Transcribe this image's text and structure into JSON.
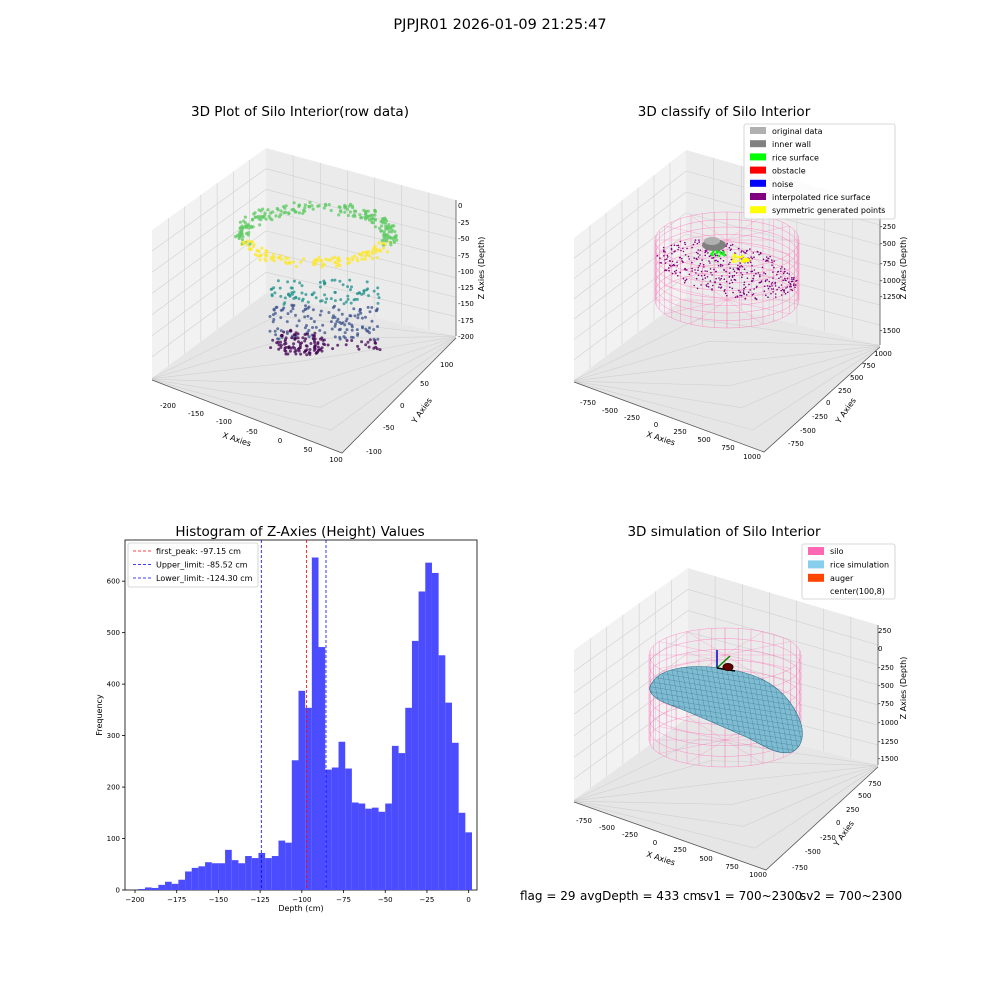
{
  "figure": {
    "suptitle": "PJPJR01 2026-01-09 21:25:47",
    "status_line": {
      "flag": "flag = 29",
      "avgDepth": "avgDepth = 433 cm",
      "sv1": "sv1 = 700~2300",
      "sv2": "sv2 = 700~2300"
    }
  },
  "chart_data": [
    {
      "type": "scatter",
      "projection": "3d",
      "title": "3D Plot of Silo Interior(row data)",
      "xlabel": "X Axies",
      "ylabel": "Y Axies",
      "zlabel": "Z Axies (Depth)",
      "x_ticks": [
        "-200",
        "-150",
        "-100",
        "-50",
        "0",
        "50",
        "100"
      ],
      "y_ticks": [
        "-100",
        "-50",
        "0",
        "50",
        "100"
      ],
      "z_ticks": [
        "-200",
        "-175",
        "-150",
        "-125",
        "-100",
        "-75",
        "-50",
        "-25",
        "0"
      ],
      "xlim": [
        -220,
        100
      ],
      "ylim": [
        -110,
        110
      ],
      "zlim": [
        -210,
        0
      ],
      "colormap": "viridis",
      "colormap_colors": [
        "#440154",
        "#3b528b",
        "#21918c",
        "#5ec962",
        "#fde725"
      ]
    },
    {
      "type": "scatter",
      "projection": "3d",
      "title": "3D classify of Silo Interior",
      "xlabel": "X Axies",
      "ylabel": "Y Axies",
      "zlabel": "Z Axies (Depth)",
      "x_ticks": [
        "-750",
        "-500",
        "-250",
        "0",
        "250",
        "500",
        "750",
        "1000"
      ],
      "y_ticks": [
        "-750",
        "-500",
        "-250",
        "0",
        "250",
        "500",
        "750",
        "1000"
      ],
      "z_ticks": [
        "-1500",
        "-1250",
        "-1000",
        "-750",
        "-500",
        "-250",
        "0"
      ],
      "legend": [
        {
          "label": "original data",
          "color": "#b0b0b0"
        },
        {
          "label": "inner wall",
          "color": "#808080"
        },
        {
          "label": "rice surface",
          "color": "#00ff00"
        },
        {
          "label": "obstacle",
          "color": "#ff0000"
        },
        {
          "label": "noise",
          "color": "#0000ff"
        },
        {
          "label": "interpolated rice surface",
          "color": "#800080"
        },
        {
          "label": "symmetric generated points",
          "color": "#ffff00"
        }
      ],
      "legend_loc": "upper right"
    },
    {
      "type": "bar",
      "title": "Histogram of Z-Axies (Height) Values",
      "xlabel": "Depth (cm)",
      "ylabel": "Frequency",
      "bar_color": "#4c4cff",
      "bin_width": 4,
      "x_ticks": [
        -200,
        -175,
        -150,
        -125,
        -100,
        -75,
        -50,
        -25,
        0
      ],
      "y_ticks": [
        0,
        100,
        200,
        300,
        400,
        500,
        600
      ],
      "xlim": [
        -206,
        5
      ],
      "ylim": [
        0,
        680
      ],
      "bins_start": [
        -198,
        -194,
        -190,
        -186,
        -182,
        -178,
        -174,
        -170,
        -166,
        -162,
        -158,
        -154,
        -150,
        -146,
        -142,
        -138,
        -134,
        -130,
        -126,
        -122,
        -118,
        -114,
        -110,
        -106,
        -102,
        -98,
        -94,
        -90,
        -86,
        -82,
        -78,
        -74,
        -70,
        -66,
        -62,
        -58,
        -54,
        -50,
        -46,
        -42,
        -38,
        -34,
        -30,
        -26,
        -22,
        -18,
        -14,
        -10,
        -6,
        -2
      ],
      "values": [
        2,
        5,
        4,
        10,
        16,
        12,
        20,
        36,
        43,
        46,
        54,
        52,
        52,
        78,
        58,
        52,
        66,
        62,
        72,
        62,
        66,
        96,
        92,
        252,
        387,
        354,
        646,
        472,
        234,
        238,
        288,
        236,
        170,
        168,
        158,
        160,
        152,
        168,
        280,
        266,
        354,
        484,
        580,
        636,
        616,
        456,
        364,
        286,
        150,
        112
      ],
      "vlines": [
        {
          "label": "first_peak: -97.15 cm",
          "x": -97.15,
          "color": "#ff0000"
        },
        {
          "label": "Upper_limit: -85.52 cm",
          "x": -85.52,
          "color": "#0000ff"
        },
        {
          "label": "Lower_limit: -124.30 cm",
          "x": -124.3,
          "color": "#0000ff"
        }
      ],
      "legend_loc": "upper left"
    },
    {
      "type": "surface",
      "projection": "3d",
      "title": "3D simulation of Silo Interior",
      "xlabel": "X Axies",
      "ylabel": "Y Axies",
      "zlabel": "Z Axies (Depth)",
      "x_ticks": [
        "-750",
        "-500",
        "-250",
        "0",
        "250",
        "500",
        "750",
        "1000"
      ],
      "y_ticks": [
        "-750",
        "-500",
        "-250",
        "0",
        "250",
        "500",
        "750"
      ],
      "z_ticks": [
        "-1500",
        "-1250",
        "-1000",
        "-750",
        "-500",
        "-250",
        "0",
        "250"
      ],
      "legend": [
        {
          "label": "silo",
          "color": "#ff69b4"
        },
        {
          "label": "rice simulation",
          "color": "#87ceeb"
        },
        {
          "label": "auger",
          "color": "#ff4500"
        },
        {
          "label": "center(100,8)",
          "color": "#ffffff"
        }
      ],
      "legend_loc": "upper right"
    }
  ]
}
